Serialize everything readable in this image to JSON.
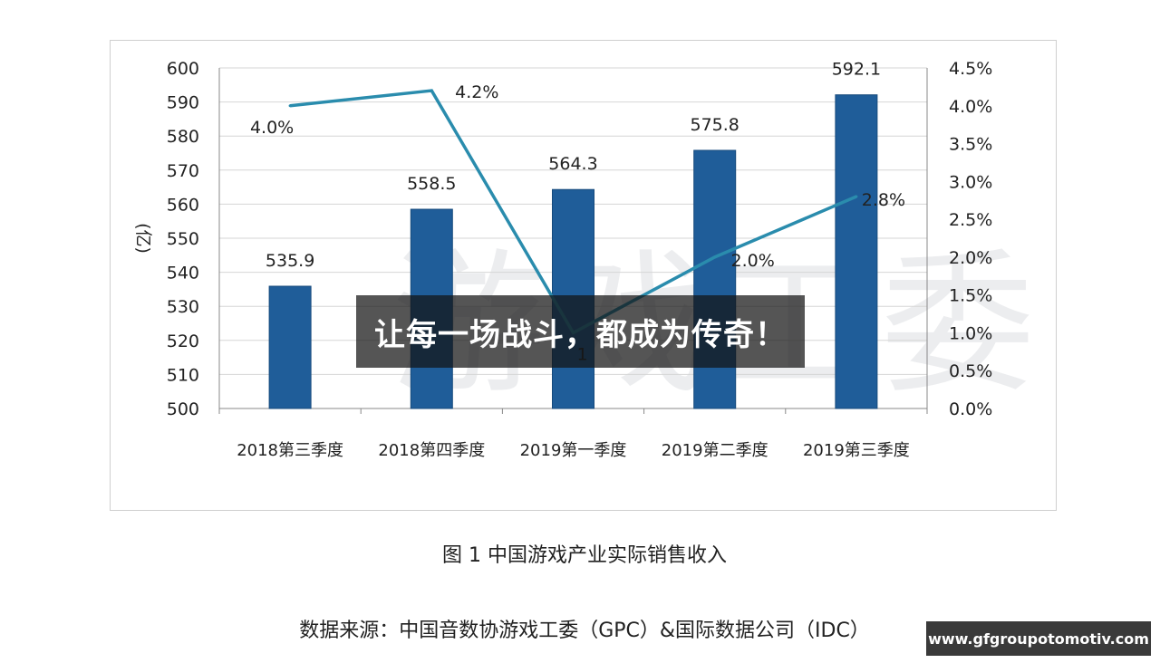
{
  "chart_data": {
    "type": "bar",
    "categories": [
      "2018第三季度",
      "2018第四季度",
      "2019第一季度",
      "2019第二季度",
      "2019第三季度"
    ],
    "series": [
      {
        "type": "bar",
        "values": [
          535.9,
          558.5,
          564.3,
          575.8,
          592.1
        ],
        "labels": [
          "535.9",
          "558.5",
          "564.3",
          "575.8",
          "592.1"
        ],
        "color": "#1f5d99"
      },
      {
        "type": "line",
        "values": [
          4.0,
          4.2,
          1.0,
          2.0,
          2.8
        ],
        "labels": [
          "4.0%",
          "4.2%",
          "1",
          "2.0%",
          "2.8%"
        ],
        "color": "#2a8cad"
      }
    ],
    "ylabel": "(亿)",
    "ylim": [
      500,
      600
    ],
    "yticks": [
      "500",
      "510",
      "520",
      "530",
      "540",
      "550",
      "560",
      "570",
      "580",
      "590",
      "600"
    ],
    "y2lim": [
      0,
      4.5
    ],
    "y2ticks": [
      "0.0%",
      "0.5%",
      "1.0%",
      "1.5%",
      "2.0%",
      "2.5%",
      "3.0%",
      "3.5%",
      "4.0%",
      "4.5%"
    ],
    "grid": true
  },
  "watermark": "游戏工委",
  "banner": "让每一场战斗，都成为传奇！",
  "caption": "图 1  中国游戏产业实际销售收入",
  "source": "数据来源：中国音数协游戏工委（GPC）&国际数据公司（IDC）",
  "site_badge": "www.gfgroupotomotiv.com"
}
